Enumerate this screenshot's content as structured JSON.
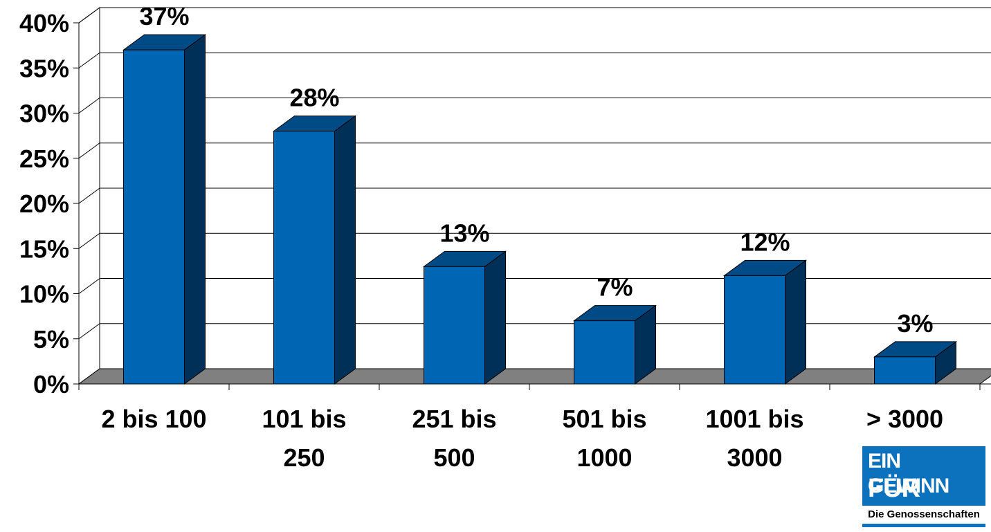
{
  "chart_data": {
    "type": "bar",
    "categories": [
      [
        "2 bis 100"
      ],
      [
        "101 bis",
        "250"
      ],
      [
        "251 bis",
        "500"
      ],
      [
        "501 bis",
        "1000"
      ],
      [
        "1001 bis",
        "3000"
      ],
      [
        "> 3000"
      ]
    ],
    "values": [
      37,
      28,
      13,
      7,
      12,
      3
    ],
    "data_labels": [
      "37%",
      "28%",
      "13%",
      "7%",
      "12%",
      "3%"
    ],
    "ylim": [
      0,
      40
    ],
    "yticks": [
      "0%",
      "5%",
      "10%",
      "15%",
      "20%",
      "25%",
      "30%",
      "35%",
      "40%"
    ],
    "grid": true,
    "bar_front_color": "#0066b3",
    "bar_top_color": "#004a86",
    "bar_side_color": "#003057",
    "floor_color": "#808080"
  },
  "logo": {
    "line1": "EIN GEWINN",
    "line2": "FÜR ALLE",
    "subtitle": "Die Genossenschaften",
    "color": "#0d72bd"
  }
}
